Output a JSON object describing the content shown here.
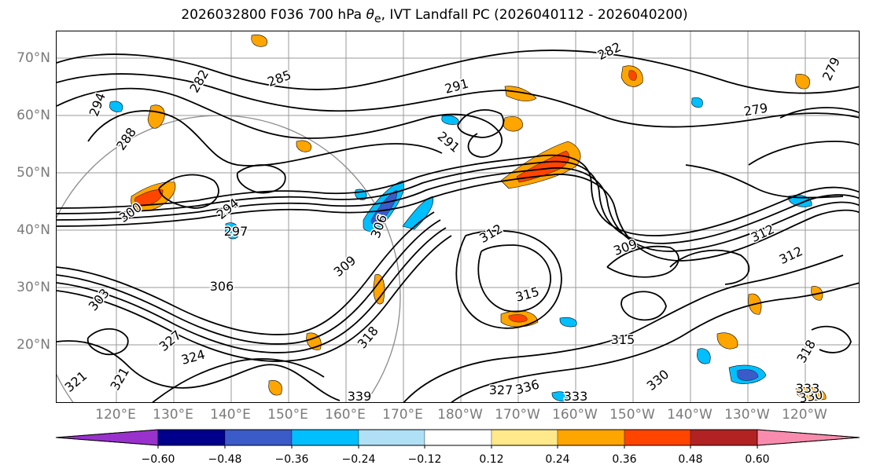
{
  "title": {
    "prefix": "2026032800 F036 700 hPa ",
    "symbol": "θ",
    "symbol_sub": "e",
    "suffix": ", IVT Landfall PC (2026040112 - 2026040200)"
  },
  "map": {
    "lat_labels": [
      "70°N",
      "60°N",
      "50°N",
      "40°N",
      "30°N",
      "20°N"
    ],
    "lon_labels": [
      "120°E",
      "130°E",
      "140°E",
      "150°E",
      "160°E",
      "170°E",
      "180°W",
      "170°W",
      "160°W",
      "150°W",
      "140°W",
      "130°W",
      "120°W"
    ],
    "contour_labels": [
      "282",
      "285",
      "288",
      "291",
      "291",
      "294",
      "294",
      "297",
      "300",
      "303",
      "306",
      "306",
      "309",
      "309",
      "312",
      "312",
      "312",
      "315",
      "315",
      "318",
      "318",
      "321",
      "321",
      "324",
      "327",
      "327",
      "330",
      "330",
      "333",
      "333",
      "336",
      "339",
      "279",
      "282",
      "279"
    ],
    "contour_color": "#000000",
    "graticule_color": "#9a9a9a"
  },
  "colorbar": {
    "colors": [
      "#9932cc",
      "#00008b",
      "#3b5bc9",
      "#00bfff",
      "#b0e0f5",
      "#ffffff",
      "#ffe98a",
      "#ffa500",
      "#ff4500",
      "#b22222",
      "#f98cae"
    ],
    "tick_labels": [
      "−0.60",
      "−0.48",
      "−0.36",
      "−0.24",
      "−0.12",
      "0.12",
      "0.24",
      "0.36",
      "0.48",
      "0.60"
    ]
  }
}
